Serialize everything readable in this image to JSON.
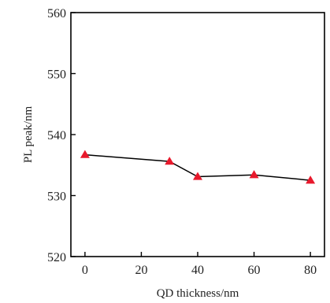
{
  "chart_data": {
    "type": "line",
    "title": "",
    "xlabel": "QD thickness/nm",
    "ylabel": "PL peak/nm",
    "xlim": [
      -5,
      85
    ],
    "ylim": [
      520,
      560
    ],
    "xticks": [
      0,
      20,
      40,
      60,
      80
    ],
    "yticks": [
      520,
      530,
      540,
      550,
      560
    ],
    "xtick_labels": [
      "0",
      "20",
      "40",
      "60",
      "80"
    ],
    "ytick_labels": [
      "520",
      "530",
      "540",
      "550",
      "560"
    ],
    "grid": false,
    "legend": "none",
    "series": [
      {
        "x": [
          0,
          30,
          40,
          60,
          80
        ],
        "y": [
          536.7,
          535.6,
          533.1,
          533.4,
          532.5
        ],
        "line_color": "#000000",
        "marker": "triangle",
        "marker_color": "#e8192c"
      }
    ]
  }
}
